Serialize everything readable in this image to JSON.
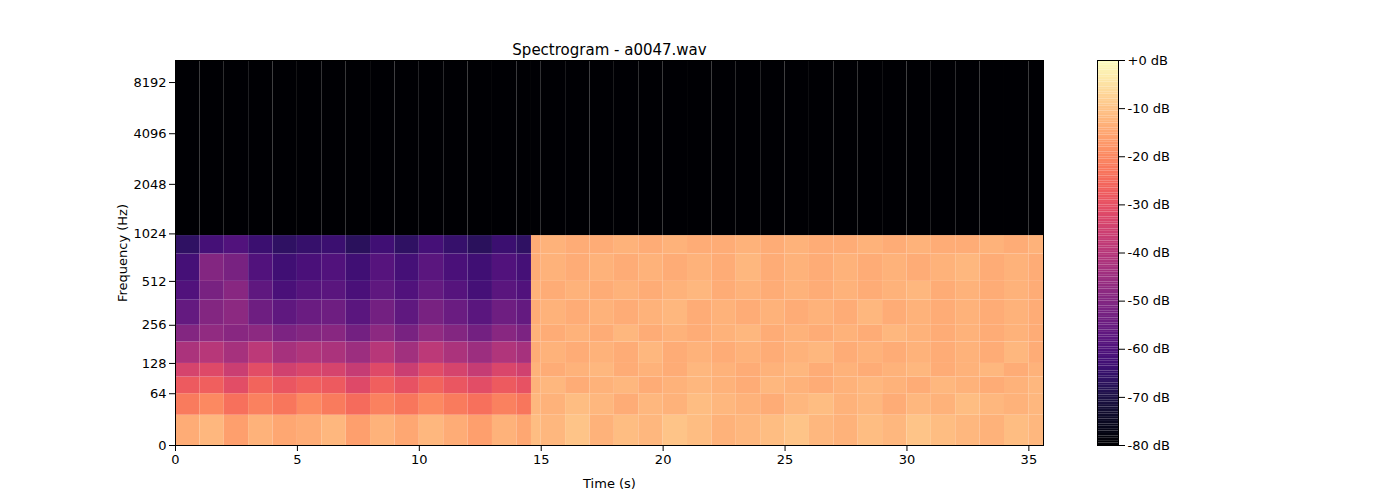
{
  "chart_data": {
    "type": "heatmap",
    "title": "Spectrogram - a0047.wav",
    "x_label": "Time (s)",
    "y_label": "Frequency (Hz)",
    "log": "y",
    "color": "magma",
    "xlim": [
      0,
      35.6
    ],
    "ylim": [
      0,
      11025
    ],
    "xticks": [
      0,
      5,
      10,
      15,
      20,
      25,
      30,
      35
    ],
    "yticks": [
      0,
      64,
      128,
      256,
      512,
      1024,
      2048,
      4096,
      8192
    ],
    "time_bins": [
      0,
      1,
      2,
      3,
      4,
      5,
      6,
      7,
      8,
      9,
      10,
      11,
      12,
      13,
      14,
      14.6,
      15,
      16,
      17,
      18,
      19,
      20,
      21,
      22,
      23,
      24,
      25,
      26,
      27,
      28,
      29,
      30,
      31,
      32,
      33,
      34,
      35,
      35.6
    ],
    "frequency_bins": [
      0,
      32,
      64,
      96,
      128,
      192,
      256,
      384,
      512,
      768,
      1000,
      11025
    ],
    "cells": [
      [
        -14,
        -12,
        -16,
        -13,
        -15,
        -14,
        -12,
        -16,
        -13,
        -15,
        -12,
        -14,
        -16,
        -13,
        -15,
        -11,
        -12,
        -10,
        -13,
        -11,
        -12,
        -10,
        -11,
        -13,
        -12,
        -11,
        -10,
        -12,
        -13,
        -11,
        -12,
        -10,
        -11,
        -12,
        -13,
        -11,
        -12
      ],
      [
        -22,
        -20,
        -24,
        -21,
        -23,
        -20,
        -22,
        -25,
        -21,
        -23,
        -20,
        -22,
        -24,
        -21,
        -23,
        -12,
        -13,
        -11,
        -12,
        -14,
        -12,
        -13,
        -11,
        -12,
        -13,
        -14,
        -12,
        -11,
        -13,
        -12,
        -14,
        -12,
        -13,
        -11,
        -12,
        -13,
        -12
      ],
      [
        -28,
        -27,
        -31,
        -26,
        -29,
        -27,
        -28,
        -32,
        -27,
        -30,
        -26,
        -29,
        -31,
        -28,
        -30,
        -13,
        -12,
        -14,
        -13,
        -12,
        -14,
        -13,
        -12,
        -13,
        -14,
        -12,
        -13,
        -14,
        -13,
        -12,
        -13,
        -14,
        -12,
        -13,
        -14,
        -13,
        -12
      ],
      [
        -34,
        -32,
        -36,
        -31,
        -35,
        -33,
        -34,
        -37,
        -32,
        -36,
        -31,
        -34,
        -37,
        -33,
        -35,
        -13,
        -14,
        -13,
        -12,
        -14,
        -13,
        -14,
        -12,
        -13,
        -14,
        -13,
        -12,
        -14,
        -13,
        -14,
        -13,
        -12,
        -14,
        -13,
        -12,
        -14,
        -13
      ],
      [
        -42,
        -40,
        -43,
        -39,
        -43,
        -41,
        -42,
        -45,
        -40,
        -44,
        -39,
        -42,
        -45,
        -41,
        -43,
        -14,
        -13,
        -14,
        -13,
        -14,
        -12,
        -14,
        -13,
        -14,
        -13,
        -14,
        -13,
        -12,
        -14,
        -13,
        -14,
        -13,
        -14,
        -13,
        -14,
        -12,
        -14
      ],
      [
        -50,
        -47,
        -49,
        -48,
        -51,
        -50,
        -49,
        -53,
        -48,
        -52,
        -47,
        -50,
        -53,
        -49,
        -51,
        -13,
        -14,
        -13,
        -14,
        -12,
        -14,
        -13,
        -14,
        -13,
        -12,
        -14,
        -13,
        -14,
        -13,
        -14,
        -12,
        -13,
        -14,
        -13,
        -14,
        -13,
        -14
      ],
      [
        -56,
        -50,
        -48,
        -54,
        -57,
        -55,
        -54,
        -58,
        -53,
        -57,
        -52,
        -55,
        -58,
        -54,
        -56,
        -14,
        -13,
        -14,
        -13,
        -14,
        -13,
        -12,
        -14,
        -13,
        -14,
        -13,
        -14,
        -13,
        -14,
        -12,
        -14,
        -13,
        -14,
        -13,
        -14,
        -13,
        -14
      ],
      [
        -60,
        -52,
        -49,
        -57,
        -61,
        -59,
        -58,
        -61,
        -57,
        -60,
        -56,
        -59,
        -62,
        -58,
        -60,
        -13,
        -14,
        -13,
        -14,
        -13,
        -14,
        -13,
        -12,
        -14,
        -13,
        -14,
        -13,
        -14,
        -13,
        -14,
        -13,
        -12,
        -14,
        -13,
        -14,
        -13,
        -14
      ],
      [
        -62,
        -50,
        -52,
        -60,
        -63,
        -61,
        -60,
        -63,
        -59,
        -62,
        -58,
        -61,
        -63,
        -60,
        -62,
        -14,
        -13,
        -14,
        -13,
        -14,
        -13,
        -14,
        -13,
        -14,
        -12,
        -14,
        -13,
        -14,
        -13,
        -14,
        -13,
        -14,
        -13,
        -12,
        -14,
        -13,
        -14
      ],
      [
        -66,
        -62,
        -60,
        -64,
        -66,
        -65,
        -64,
        -67,
        -63,
        -66,
        -62,
        -65,
        -67,
        -64,
        -66,
        -14,
        -13,
        -14,
        -14,
        -13,
        -14,
        -13,
        -14,
        -14,
        -13,
        -14,
        -13,
        -14,
        -14,
        -13,
        -14,
        -13,
        -14,
        -14,
        -13,
        -14,
        -13
      ],
      [
        -80,
        -80,
        -80,
        -80,
        -80,
        -80,
        -80,
        -80,
        -80,
        -80,
        -80,
        -80,
        -80,
        -80,
        -80,
        -80,
        -80,
        -80,
        -80,
        -80,
        -80,
        -80,
        -80,
        -80,
        -80,
        -80,
        -80,
        -80,
        -80,
        -80,
        -80,
        -80,
        -80,
        -80,
        -80,
        -80,
        -80
      ]
    ],
    "colorbar": {
      "range": [
        -80,
        0
      ],
      "ticks": [
        {
          "value": 0,
          "label": "+0 dB"
        },
        {
          "value": -10,
          "label": "-10 dB"
        },
        {
          "value": -20,
          "label": "-20 dB"
        },
        {
          "value": -30,
          "label": "-30 dB"
        },
        {
          "value": -40,
          "label": "-40 dB"
        },
        {
          "value": -50,
          "label": "-50 dB"
        },
        {
          "value": -60,
          "label": "-60 dB"
        },
        {
          "value": -70,
          "label": "-70 dB"
        },
        {
          "value": -80,
          "label": "-80 dB"
        }
      ]
    }
  }
}
